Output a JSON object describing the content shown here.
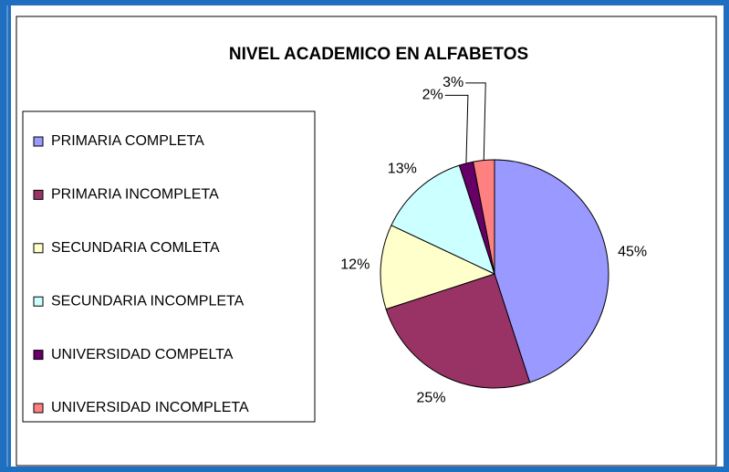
{
  "chart_data": {
    "type": "pie",
    "title": "NIVEL ACADEMICO EN ALFABETOS",
    "categories": [
      "PRIMARIA COMPLETA",
      "PRIMARIA INCOMPLETA",
      "SECUNDARIA COMLETA",
      "SECUNDARIA INCOMPLETA",
      "UNIVERSIDAD COMPELTA",
      "UNIVERSIDAD INCOMPLETA"
    ],
    "values": [
      45,
      25,
      12,
      13,
      2,
      3
    ],
    "value_labels": [
      "45%",
      "25%",
      "12%",
      "13%",
      "2%",
      "3%"
    ],
    "colors": [
      "#9999ff",
      "#993366",
      "#ffffcc",
      "#ccffff",
      "#660066",
      "#ff8080"
    ],
    "legend": "left"
  }
}
